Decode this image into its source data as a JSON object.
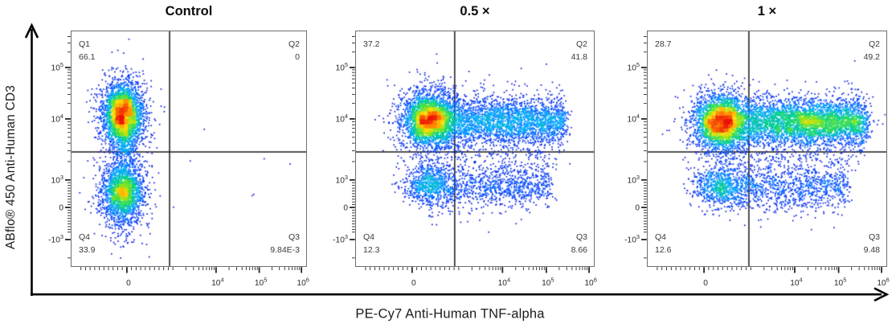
{
  "figure": {
    "x_axis_label": "PE-Cy7 Anti-Human TNF-alpha",
    "y_axis_label": "ABflo® 450 Anti-Human CD3"
  },
  "axes": {
    "x_major_ticks": [
      {
        "f": 0.236,
        "label": "0"
      },
      {
        "f": 0.616,
        "label": "10^4"
      },
      {
        "f": 0.8,
        "label": "10^5"
      },
      {
        "f": 0.98,
        "label": "10^6"
      }
    ],
    "y_major_ticks": [
      {
        "f": 0.154,
        "label": "10^5"
      },
      {
        "f": 0.373,
        "label": "10^4"
      },
      {
        "f": 0.633,
        "label": "10^3"
      },
      {
        "f": 0.75,
        "label": "0"
      },
      {
        "f": 0.887,
        "label": "-10^3"
      }
    ]
  },
  "colormap": [
    {
      "t": 0.0,
      "c": "#1414d2"
    },
    {
      "t": 0.18,
      "c": "#0046ff"
    },
    {
      "t": 0.35,
      "c": "#00aaff"
    },
    {
      "t": 0.5,
      "c": "#00d284"
    },
    {
      "t": 0.63,
      "c": "#78e61e"
    },
    {
      "t": 0.75,
      "c": "#ffdc00"
    },
    {
      "t": 0.87,
      "c": "#ff8200"
    },
    {
      "t": 1.0,
      "c": "#eb1409"
    }
  ],
  "chart_data": [
    {
      "type": "scatter",
      "title": "Control",
      "gate": {
        "x_frac": 0.418,
        "y_frac": 0.514
      },
      "quadrants": {
        "q1": {
          "label": "Q1",
          "value": "66.1"
        },
        "q2": {
          "label": "Q2",
          "value": "0"
        },
        "q3": {
          "label": "Q3",
          "value": "9.84E-3"
        },
        "q4": {
          "label": "Q4",
          "value": "33.9"
        }
      },
      "clusters": [
        {
          "kind": "gauss",
          "cx": 0.22,
          "cy": 0.355,
          "sx": 0.04,
          "sy": 0.062,
          "n": 2400
        },
        {
          "kind": "gauss",
          "cx": 0.22,
          "cy": 0.36,
          "sx": 0.06,
          "sy": 0.095,
          "n": 700
        },
        {
          "kind": "gauss",
          "cx": 0.22,
          "cy": 0.5,
          "sx": 0.03,
          "sy": 0.055,
          "n": 260
        },
        {
          "kind": "gauss",
          "cx": 0.22,
          "cy": 0.685,
          "sx": 0.042,
          "sy": 0.055,
          "n": 1500
        },
        {
          "kind": "gauss",
          "cx": 0.22,
          "cy": 0.69,
          "sx": 0.062,
          "sy": 0.085,
          "n": 500
        },
        {
          "kind": "gauss",
          "cx": 0.215,
          "cy": 0.83,
          "sx": 0.025,
          "sy": 0.055,
          "n": 70
        },
        {
          "kind": "uniform",
          "x0": 0.45,
          "x1": 0.95,
          "y0": 0.35,
          "y1": 0.75,
          "n": 6
        }
      ]
    },
    {
      "type": "scatter",
      "title": "0.5 ×",
      "gate": {
        "x_frac": 0.415,
        "y_frac": 0.514
      },
      "quadrants": {
        "q1": {
          "label": "",
          "value": "37.2"
        },
        "q2": {
          "label": "Q2",
          "value": "41.8"
        },
        "q3": {
          "label": "Q3",
          "value": "8.66"
        },
        "q4": {
          "label": "Q4",
          "value": "12.3"
        }
      },
      "clusters": [
        {
          "kind": "gauss",
          "cx": 0.3,
          "cy": 0.378,
          "sx": 0.045,
          "sy": 0.055,
          "n": 2000
        },
        {
          "kind": "gauss",
          "cx": 0.305,
          "cy": 0.385,
          "sx": 0.075,
          "sy": 0.085,
          "n": 700
        },
        {
          "kind": "band",
          "x0": 0.33,
          "x1": 0.88,
          "cy": 0.383,
          "sy": 0.05,
          "n": 2600
        },
        {
          "kind": "band",
          "x0": 0.3,
          "x1": 0.86,
          "cy": 0.405,
          "sy": 0.09,
          "n": 500
        },
        {
          "kind": "band",
          "x0": 0.28,
          "x1": 0.8,
          "cy": 0.565,
          "sy": 0.04,
          "n": 160
        },
        {
          "kind": "gauss",
          "cx": 0.3,
          "cy": 0.655,
          "sx": 0.05,
          "sy": 0.042,
          "n": 620
        },
        {
          "kind": "band",
          "x0": 0.33,
          "x1": 0.82,
          "cy": 0.658,
          "sy": 0.042,
          "n": 800
        },
        {
          "kind": "band",
          "x0": 0.28,
          "x1": 0.72,
          "cy": 0.705,
          "sy": 0.05,
          "n": 180
        }
      ]
    },
    {
      "type": "scatter",
      "title": "1 ×",
      "gate": {
        "x_frac": 0.424,
        "y_frac": 0.514
      },
      "quadrants": {
        "q1": {
          "label": "",
          "value": "28.7"
        },
        "q2": {
          "label": "Q2",
          "value": "49.2"
        },
        "q3": {
          "label": "Q3",
          "value": "9.48"
        },
        "q4": {
          "label": "Q4",
          "value": "12.6"
        }
      },
      "clusters": [
        {
          "kind": "gauss",
          "cx": 0.295,
          "cy": 0.385,
          "sx": 0.045,
          "sy": 0.055,
          "n": 1900
        },
        {
          "kind": "gauss",
          "cx": 0.3,
          "cy": 0.39,
          "sx": 0.075,
          "sy": 0.085,
          "n": 650
        },
        {
          "kind": "band",
          "x0": 0.33,
          "x1": 0.92,
          "cy": 0.388,
          "sy": 0.052,
          "n": 3300
        },
        {
          "kind": "gauss",
          "cx": 0.72,
          "cy": 0.385,
          "sx": 0.09,
          "sy": 0.035,
          "n": 700
        },
        {
          "kind": "band",
          "x0": 0.3,
          "x1": 0.9,
          "cy": 0.41,
          "sy": 0.09,
          "n": 500
        },
        {
          "kind": "band",
          "x0": 0.28,
          "x1": 0.82,
          "cy": 0.57,
          "sy": 0.04,
          "n": 170
        },
        {
          "kind": "gauss",
          "cx": 0.295,
          "cy": 0.665,
          "sx": 0.05,
          "sy": 0.042,
          "n": 620
        },
        {
          "kind": "band",
          "x0": 0.33,
          "x1": 0.84,
          "cy": 0.665,
          "sy": 0.045,
          "n": 850
        },
        {
          "kind": "band",
          "x0": 0.28,
          "x1": 0.75,
          "cy": 0.71,
          "sy": 0.05,
          "n": 180
        }
      ]
    }
  ]
}
